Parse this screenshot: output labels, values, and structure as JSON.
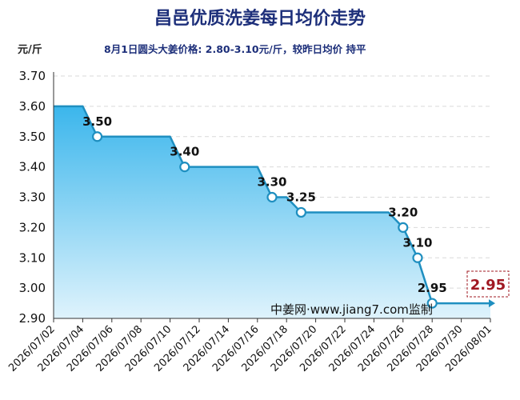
{
  "chart_data": {
    "type": "area",
    "title": "昌邑优质洗姜每日均价走势",
    "subtitle": "8月1日圆头大姜价格: 2.80-3.10元/斤，较昨日均价 持平",
    "ylabel": "元/斤",
    "watermark": "中姜网·www.jiang7.com监制",
    "latest_label": "2.95",
    "ylim": [
      2.9,
      3.7
    ],
    "yticks": [
      "2.90",
      "3.00",
      "3.10",
      "3.20",
      "3.30",
      "3.40",
      "3.50",
      "3.60",
      "3.70"
    ],
    "xticks": [
      "2026/07/02",
      "2026/07/04",
      "2026/07/06",
      "2026/07/08",
      "2026/07/10",
      "2026/07/12",
      "2026/07/14",
      "2026/07/16",
      "2026/07/18",
      "2026/07/20",
      "2026/07/22",
      "2026/07/24",
      "2026/07/26",
      "2026/07/28",
      "2026/07/30",
      "2026/08/01"
    ],
    "series": [
      {
        "x": [
          "2026/07/02",
          "2026/07/03",
          "2026/07/04",
          "2026/07/05",
          "2026/07/06",
          "2026/07/07",
          "2026/07/08",
          "2026/07/09",
          "2026/07/10",
          "2026/07/11",
          "2026/07/12",
          "2026/07/13",
          "2026/07/14",
          "2026/07/15",
          "2026/07/16",
          "2026/07/17",
          "2026/07/18",
          "2026/07/19",
          "2026/07/20",
          "2026/07/21",
          "2026/07/22",
          "2026/07/23",
          "2026/07/24",
          "2026/07/25",
          "2026/07/26",
          "2026/07/27",
          "2026/07/28",
          "2026/07/29",
          "2026/07/30",
          "2026/07/31",
          "2026/08/01"
        ],
        "values": [
          3.6,
          3.6,
          3.6,
          3.5,
          3.5,
          3.5,
          3.5,
          3.5,
          3.5,
          3.4,
          3.4,
          3.4,
          3.4,
          3.4,
          3.4,
          3.3,
          3.3,
          3.25,
          3.25,
          3.25,
          3.25,
          3.25,
          3.25,
          3.25,
          3.2,
          3.1,
          2.95,
          2.95,
          2.95,
          2.95,
          2.95
        ]
      }
    ],
    "markers": [
      {
        "x": "2026/07/05",
        "label": "3.50"
      },
      {
        "x": "2026/07/11",
        "label": "3.40"
      },
      {
        "x": "2026/07/17",
        "label": "3.30"
      },
      {
        "x": "2026/07/19",
        "label": "3.25"
      },
      {
        "x": "2026/07/26",
        "label": "3.20"
      },
      {
        "x": "2026/07/27",
        "label": "3.10"
      },
      {
        "x": "2026/07/28",
        "label": "2.95"
      }
    ],
    "grid": true,
    "colors": {
      "line": "#1f8fc0",
      "fill_top": "#3bb6ec",
      "fill_bottom": "#dff3fc",
      "latest_box": "#a01822"
    }
  }
}
